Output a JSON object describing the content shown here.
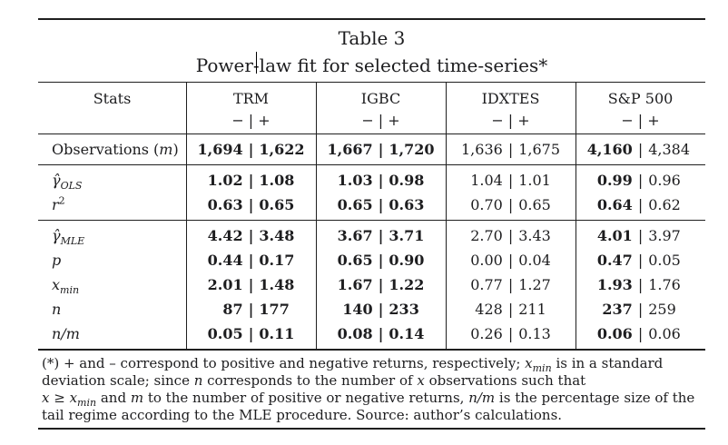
{
  "title": "Table 3",
  "subtitle": {
    "before": "Power",
    "hyphen": "-",
    "after": "law fit for selected time-series*"
  },
  "table": {
    "stats_header": "Stats",
    "sign": "− | +",
    "separator": "|",
    "columns": [
      "TRM",
      "IGBC",
      "IDXTES",
      "S&P 500"
    ],
    "column_emphasis": [
      "both",
      "both",
      "none",
      "neg"
    ],
    "groups": [
      {
        "rows": [
          {
            "label": [
              {
                "v": "Observations ("
              },
              {
                "v": "m",
                "s": "i"
              },
              {
                "v": ")"
              }
            ],
            "cells": [
              {
                "n": "1,694",
                "p": "1,622"
              },
              {
                "n": "1,667",
                "p": "1,720"
              },
              {
                "n": "1,636",
                "p": "1,675"
              },
              {
                "n": "4,160",
                "p": "4,384"
              }
            ]
          }
        ]
      },
      {
        "rows": [
          {
            "label": [
              {
                "v": "γ̂",
                "s": "i"
              },
              {
                "v": "OLS",
                "s": "isub"
              }
            ],
            "cells": [
              {
                "n": "1.02",
                "p": "1.08"
              },
              {
                "n": "1.03",
                "p": "0.98"
              },
              {
                "n": "1.04",
                "p": "1.01"
              },
              {
                "n": "0.99",
                "p": "0.96"
              }
            ]
          },
          {
            "label": [
              {
                "v": "r",
                "s": "i"
              },
              {
                "v": "2",
                "s": "sup"
              }
            ],
            "cells": [
              {
                "n": "0.63",
                "p": "0.65"
              },
              {
                "n": "0.65",
                "p": "0.63"
              },
              {
                "n": "0.70",
                "p": "0.65"
              },
              {
                "n": "0.64",
                "p": "0.62"
              }
            ]
          }
        ]
      },
      {
        "rows": [
          {
            "label": [
              {
                "v": "γ̂",
                "s": "i"
              },
              {
                "v": "MLE",
                "s": "isub"
              }
            ],
            "cells": [
              {
                "n": "4.42",
                "p": "3.48"
              },
              {
                "n": "3.67",
                "p": "3.71"
              },
              {
                "n": "2.70",
                "p": "3.43"
              },
              {
                "n": "4.01",
                "p": "3.97"
              }
            ]
          },
          {
            "label": [
              {
                "v": "p",
                "s": "i"
              }
            ],
            "cells": [
              {
                "n": "0.44",
                "p": "0.17"
              },
              {
                "n": "0.65",
                "p": "0.90"
              },
              {
                "n": "0.00",
                "p": "0.04"
              },
              {
                "n": "0.47",
                "p": "0.05"
              }
            ]
          },
          {
            "label": [
              {
                "v": "x",
                "s": "i"
              },
              {
                "v": "min",
                "s": "isub"
              }
            ],
            "cells": [
              {
                "n": "2.01",
                "p": "1.48"
              },
              {
                "n": "1.67",
                "p": "1.22"
              },
              {
                "n": "0.77",
                "p": "1.27"
              },
              {
                "n": "1.93",
                "p": "1.76"
              }
            ]
          },
          {
            "label": [
              {
                "v": "n",
                "s": "i"
              }
            ],
            "cells": [
              {
                "n": "87",
                "p": "177"
              },
              {
                "n": "140",
                "p": "233"
              },
              {
                "n": "428",
                "p": "211"
              },
              {
                "n": "237",
                "p": "259"
              }
            ]
          },
          {
            "label": [
              {
                "v": "n/m",
                "s": "i"
              }
            ],
            "cells": [
              {
                "n": "0.05",
                "p": "0.11"
              },
              {
                "n": "0.08",
                "p": "0.14"
              },
              {
                "n": "0.26",
                "p": "0.13"
              },
              {
                "n": "0.06",
                "p": "0.06"
              }
            ]
          }
        ]
      }
    ]
  },
  "footnote": {
    "lines": [
      [
        {
          "v": "(*) + and – correspond to positive and negative returns, respectively; "
        },
        {
          "v": "x",
          "s": "i"
        },
        {
          "v": "min",
          "s": "isub"
        },
        {
          "v": " is in a standard"
        }
      ],
      [
        {
          "v": "deviation scale; since "
        },
        {
          "v": "n",
          "s": "i"
        },
        {
          "v": " corresponds to the number of "
        },
        {
          "v": "x",
          "s": "i"
        },
        {
          "v": " observations such that"
        }
      ],
      [
        {
          "v": "x",
          "s": "i"
        },
        {
          "v": " ≥ "
        },
        {
          "v": "x",
          "s": "i"
        },
        {
          "v": "min",
          "s": "isub"
        },
        {
          "v": " and "
        },
        {
          "v": "m",
          "s": "i"
        },
        {
          "v": " to the number of positive or negative returns, "
        },
        {
          "v": "n/m",
          "s": "i"
        },
        {
          "v": " is the percentage size of the"
        }
      ],
      [
        {
          "v": "tail regime according to the MLE procedure. Source: author’s calculations."
        }
      ]
    ]
  }
}
